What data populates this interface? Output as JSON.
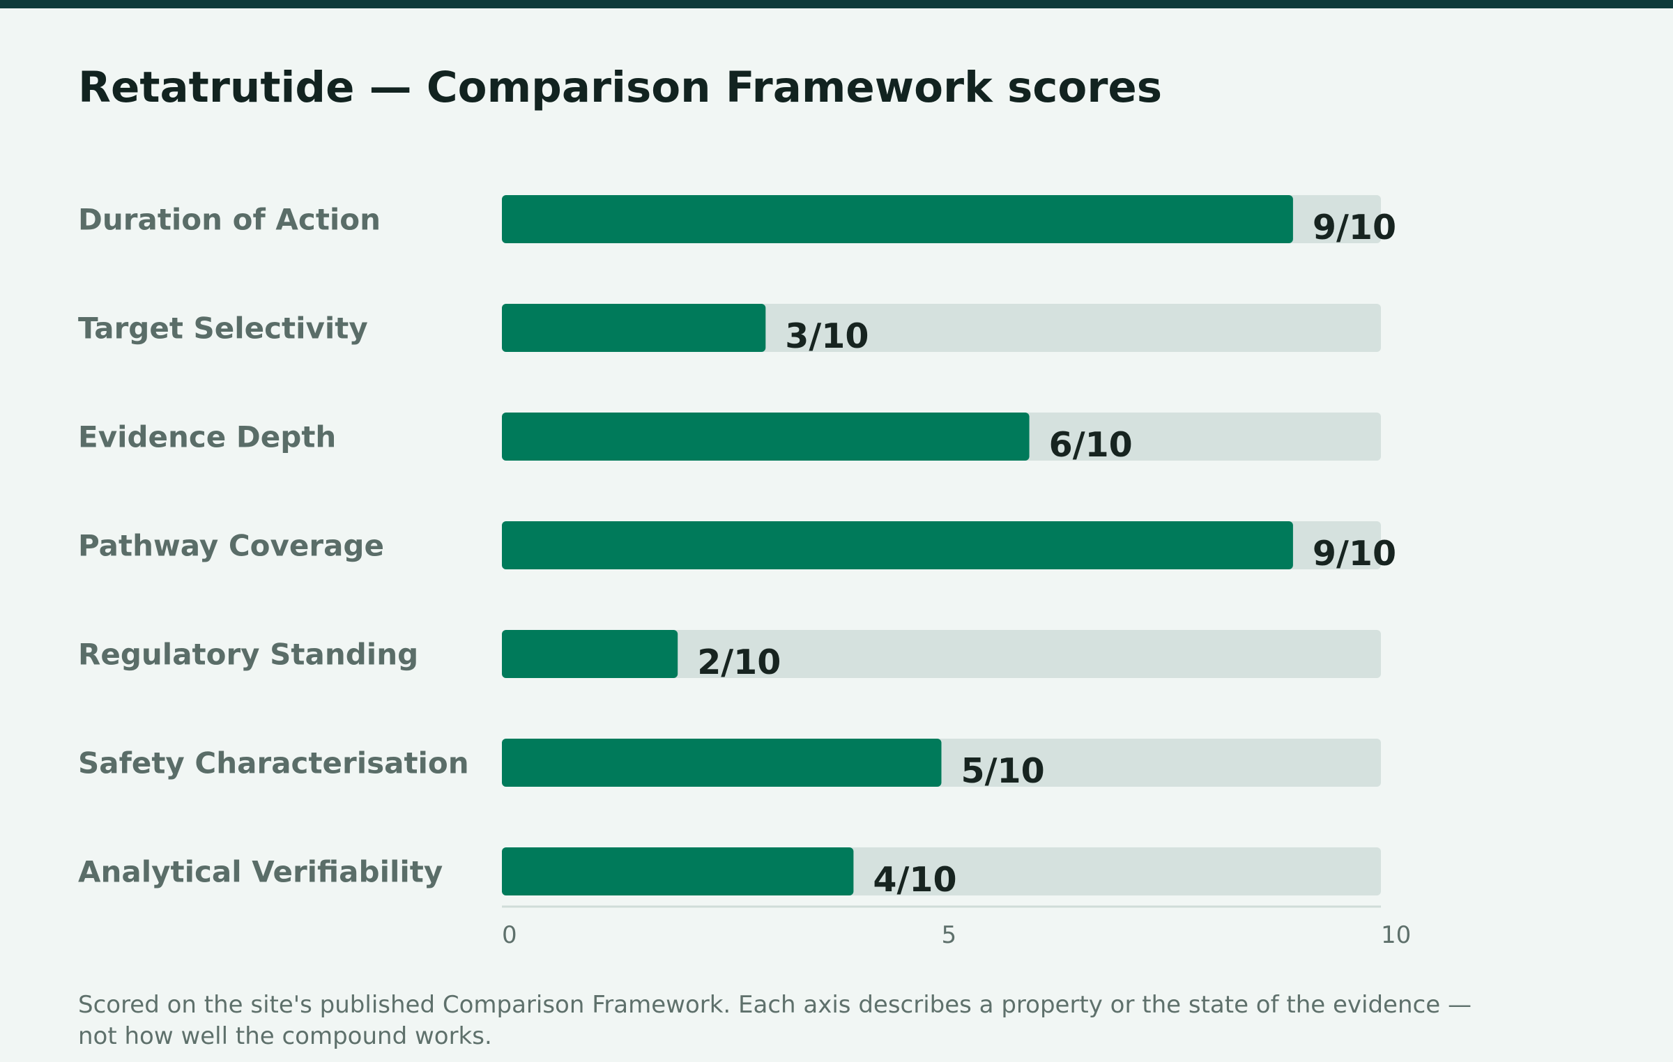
{
  "title": "Retatrutide — Comparison Framework scores",
  "colors": {
    "topbar": "#0f3b3b",
    "background": "#f1f6f4",
    "bar_fill": "#007a5a",
    "bar_track": "#d5e1de",
    "axis_line": "#cfdcd8"
  },
  "chart_data": {
    "type": "bar",
    "orientation": "horizontal",
    "categories": [
      "Duration of Action",
      "Target Selectivity",
      "Evidence Depth",
      "Pathway Coverage",
      "Regulatory Standing",
      "Safety Characterisation",
      "Analytical Verifiability"
    ],
    "values": [
      9,
      3,
      6,
      9,
      2,
      5,
      4
    ],
    "value_labels": [
      "9/10",
      "3/10",
      "6/10",
      "9/10",
      "2/10",
      "5/10",
      "4/10"
    ],
    "xlim": [
      0,
      10
    ],
    "xticks": [
      0,
      5,
      10
    ],
    "xtick_labels": [
      "0",
      "5",
      "10"
    ],
    "grid": false,
    "legend": "none"
  },
  "footnote": "Scored on the site's published Comparison Framework. Each axis describes a property or the state of the evidence — not how well the compound works."
}
